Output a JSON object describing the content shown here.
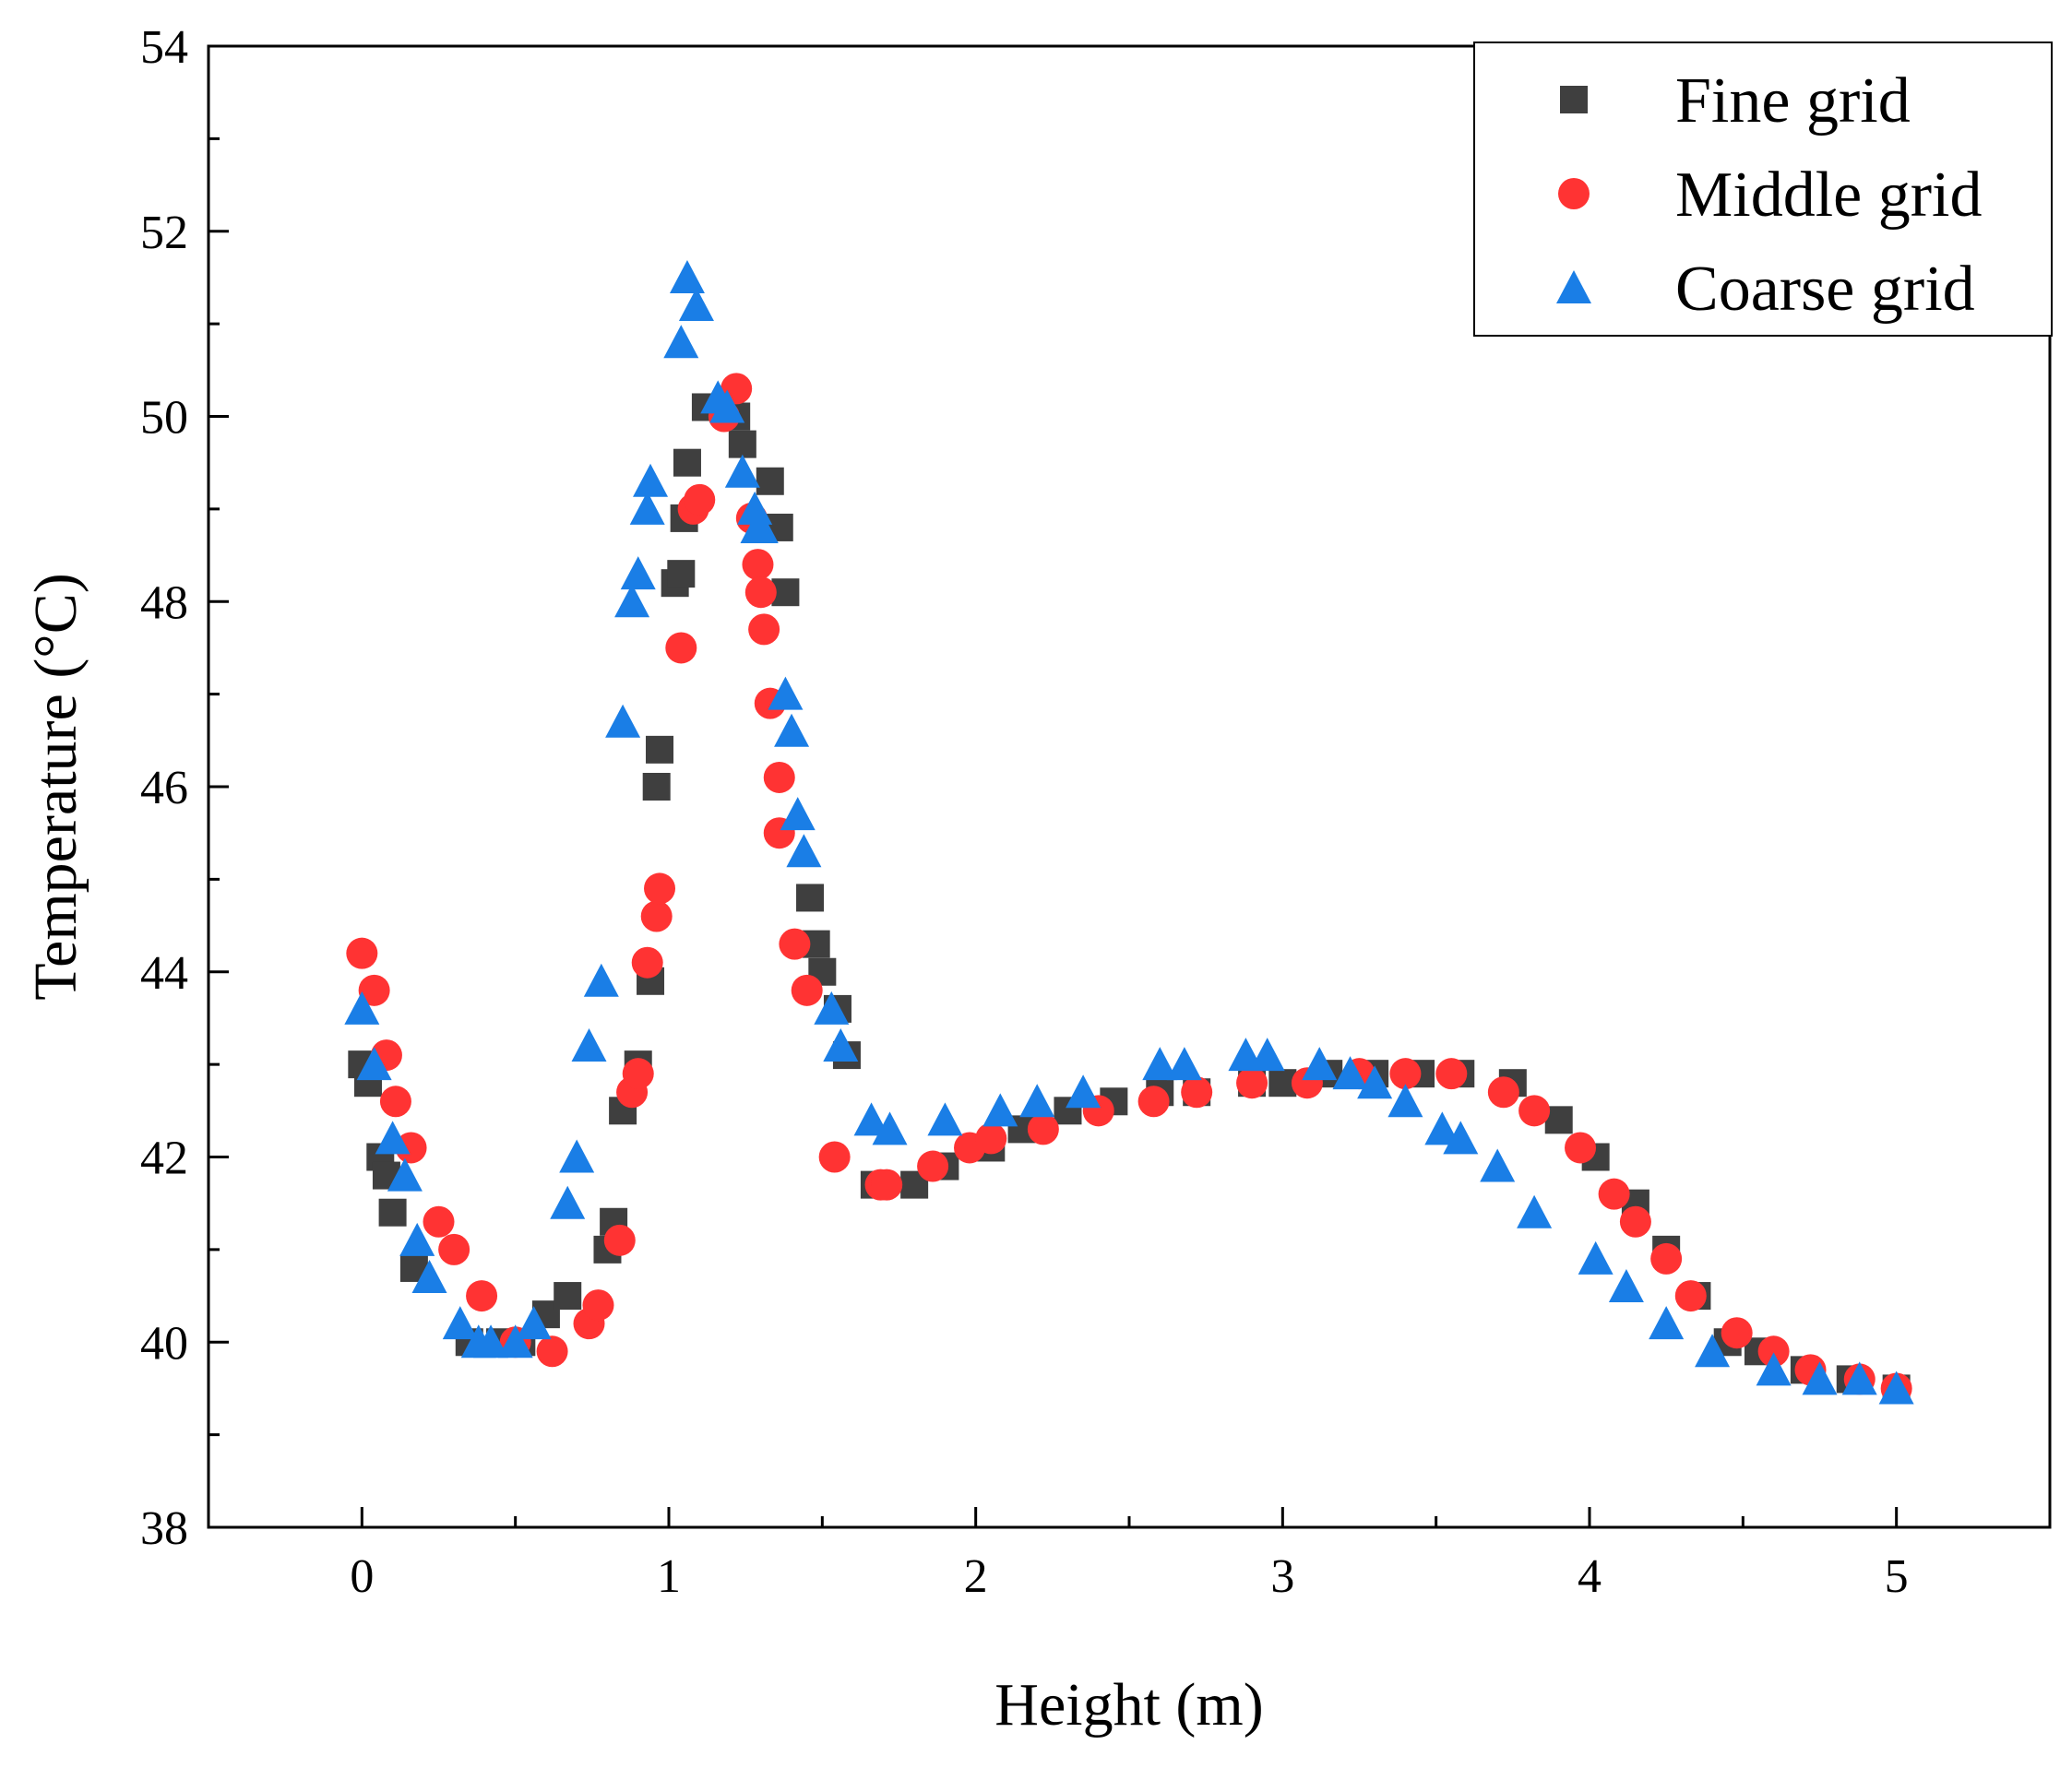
{
  "chart_data": {
    "type": "scatter",
    "title": "",
    "xlabel": "Height (m)",
    "ylabel": "Temperature (°C)",
    "xlim": [
      -0.5,
      5.5
    ],
    "ylim": [
      38,
      54
    ],
    "xticks": [
      0,
      1,
      2,
      3,
      4,
      5
    ],
    "yticks": [
      38,
      40,
      42,
      44,
      46,
      48,
      50,
      52,
      54
    ],
    "grid": false,
    "legend_position": "top-right",
    "series": [
      {
        "name": "Fine grid",
        "marker": "square",
        "color": "#3f3f3f",
        "points": [
          [
            0.0,
            43.0
          ],
          [
            0.02,
            42.8
          ],
          [
            0.06,
            42.0
          ],
          [
            0.08,
            41.8
          ],
          [
            0.1,
            41.4
          ],
          [
            0.17,
            40.8
          ],
          [
            0.35,
            40.0
          ],
          [
            0.45,
            40.0
          ],
          [
            0.52,
            40.0
          ],
          [
            0.6,
            40.3
          ],
          [
            0.67,
            40.5
          ],
          [
            0.8,
            41.0
          ],
          [
            0.82,
            41.3
          ],
          [
            0.85,
            42.5
          ],
          [
            0.9,
            43.0
          ],
          [
            0.94,
            43.9
          ],
          [
            0.96,
            46.0
          ],
          [
            0.97,
            46.4
          ],
          [
            1.02,
            48.2
          ],
          [
            1.04,
            48.3
          ],
          [
            1.05,
            48.9
          ],
          [
            1.06,
            49.5
          ],
          [
            1.12,
            50.1
          ],
          [
            1.22,
            50.0
          ],
          [
            1.24,
            49.7
          ],
          [
            1.33,
            49.3
          ],
          [
            1.36,
            48.8
          ],
          [
            1.38,
            48.1
          ],
          [
            1.46,
            44.8
          ],
          [
            1.48,
            44.3
          ],
          [
            1.5,
            44.0
          ],
          [
            1.55,
            43.6
          ],
          [
            1.58,
            43.1
          ],
          [
            1.67,
            41.7
          ],
          [
            1.8,
            41.7
          ],
          [
            1.9,
            41.9
          ],
          [
            2.05,
            42.1
          ],
          [
            2.15,
            42.3
          ],
          [
            2.3,
            42.5
          ],
          [
            2.45,
            42.6
          ],
          [
            2.6,
            42.7
          ],
          [
            2.72,
            42.7
          ],
          [
            2.9,
            42.8
          ],
          [
            3.0,
            42.8
          ],
          [
            3.15,
            42.9
          ],
          [
            3.3,
            42.9
          ],
          [
            3.45,
            42.9
          ],
          [
            3.58,
            42.9
          ],
          [
            3.75,
            42.8
          ],
          [
            3.9,
            42.4
          ],
          [
            4.02,
            42.0
          ],
          [
            4.15,
            41.5
          ],
          [
            4.25,
            41.0
          ],
          [
            4.35,
            40.5
          ],
          [
            4.45,
            40.0
          ],
          [
            4.55,
            39.9
          ],
          [
            4.7,
            39.7
          ],
          [
            4.85,
            39.6
          ],
          [
            5.0,
            39.5
          ]
        ]
      },
      {
        "name": "Middle grid",
        "marker": "circle",
        "color": "#ff3333",
        "points": [
          [
            0.0,
            44.2
          ],
          [
            0.04,
            43.8
          ],
          [
            0.08,
            43.1
          ],
          [
            0.11,
            42.6
          ],
          [
            0.16,
            42.1
          ],
          [
            0.25,
            41.3
          ],
          [
            0.3,
            41.0
          ],
          [
            0.39,
            40.5
          ],
          [
            0.5,
            40.0
          ],
          [
            0.62,
            39.9
          ],
          [
            0.74,
            40.2
          ],
          [
            0.77,
            40.4
          ],
          [
            0.84,
            41.1
          ],
          [
            0.88,
            42.7
          ],
          [
            0.9,
            42.9
          ],
          [
            0.93,
            44.1
          ],
          [
            0.96,
            44.6
          ],
          [
            0.97,
            44.9
          ],
          [
            1.04,
            47.5
          ],
          [
            1.08,
            49.0
          ],
          [
            1.1,
            49.1
          ],
          [
            1.18,
            50.0
          ],
          [
            1.22,
            50.3
          ],
          [
            1.27,
            48.9
          ],
          [
            1.29,
            48.4
          ],
          [
            1.3,
            48.1
          ],
          [
            1.31,
            47.7
          ],
          [
            1.33,
            46.9
          ],
          [
            1.36,
            46.1
          ],
          [
            1.36,
            45.5
          ],
          [
            1.41,
            44.3
          ],
          [
            1.45,
            43.8
          ],
          [
            1.54,
            42.0
          ],
          [
            1.69,
            41.7
          ],
          [
            1.71,
            41.7
          ],
          [
            1.86,
            41.9
          ],
          [
            1.98,
            42.1
          ],
          [
            2.05,
            42.2
          ],
          [
            2.22,
            42.3
          ],
          [
            2.4,
            42.5
          ],
          [
            2.58,
            42.6
          ],
          [
            2.72,
            42.7
          ],
          [
            2.9,
            42.8
          ],
          [
            3.08,
            42.8
          ],
          [
            3.25,
            42.9
          ],
          [
            3.4,
            42.9
          ],
          [
            3.55,
            42.9
          ],
          [
            3.72,
            42.7
          ],
          [
            3.82,
            42.5
          ],
          [
            3.97,
            42.1
          ],
          [
            4.08,
            41.6
          ],
          [
            4.15,
            41.3
          ],
          [
            4.25,
            40.9
          ],
          [
            4.33,
            40.5
          ],
          [
            4.48,
            40.1
          ],
          [
            4.6,
            39.9
          ],
          [
            4.72,
            39.7
          ],
          [
            4.88,
            39.6
          ],
          [
            5.0,
            39.5
          ]
        ]
      },
      {
        "name": "Coarse grid",
        "marker": "triangle",
        "color": "#1a7ee6",
        "points": [
          [
            0.0,
            43.6
          ],
          [
            0.04,
            43.0
          ],
          [
            0.1,
            42.2
          ],
          [
            0.14,
            41.8
          ],
          [
            0.18,
            41.1
          ],
          [
            0.22,
            40.7
          ],
          [
            0.32,
            40.2
          ],
          [
            0.38,
            40.0
          ],
          [
            0.42,
            40.0
          ],
          [
            0.5,
            40.0
          ],
          [
            0.56,
            40.2
          ],
          [
            0.67,
            41.5
          ],
          [
            0.7,
            42.0
          ],
          [
            0.74,
            43.2
          ],
          [
            0.78,
            43.9
          ],
          [
            0.85,
            46.7
          ],
          [
            0.88,
            48.0
          ],
          [
            0.9,
            48.3
          ],
          [
            0.93,
            49.0
          ],
          [
            0.94,
            49.3
          ],
          [
            1.04,
            50.8
          ],
          [
            1.06,
            51.5
          ],
          [
            1.09,
            51.2
          ],
          [
            1.16,
            50.2
          ],
          [
            1.19,
            50.1
          ],
          [
            1.24,
            49.4
          ],
          [
            1.28,
            49.0
          ],
          [
            1.29,
            48.8
          ],
          [
            1.3,
            48.8
          ],
          [
            1.38,
            47.0
          ],
          [
            1.4,
            46.6
          ],
          [
            1.42,
            45.7
          ],
          [
            1.44,
            45.3
          ],
          [
            1.53,
            43.6
          ],
          [
            1.56,
            43.2
          ],
          [
            1.66,
            42.4
          ],
          [
            1.72,
            42.3
          ],
          [
            1.9,
            42.4
          ],
          [
            2.08,
            42.5
          ],
          [
            2.2,
            42.6
          ],
          [
            2.35,
            42.7
          ],
          [
            2.6,
            43.0
          ],
          [
            2.68,
            43.0
          ],
          [
            2.88,
            43.1
          ],
          [
            2.95,
            43.1
          ],
          [
            3.12,
            43.0
          ],
          [
            3.22,
            42.9
          ],
          [
            3.3,
            42.8
          ],
          [
            3.4,
            42.6
          ],
          [
            3.52,
            42.3
          ],
          [
            3.58,
            42.2
          ],
          [
            3.7,
            41.9
          ],
          [
            3.82,
            41.4
          ],
          [
            4.02,
            40.9
          ],
          [
            4.12,
            40.6
          ],
          [
            4.25,
            40.2
          ],
          [
            4.4,
            39.9
          ],
          [
            4.6,
            39.7
          ],
          [
            4.75,
            39.6
          ],
          [
            4.88,
            39.6
          ],
          [
            5.0,
            39.5
          ]
        ]
      }
    ]
  }
}
